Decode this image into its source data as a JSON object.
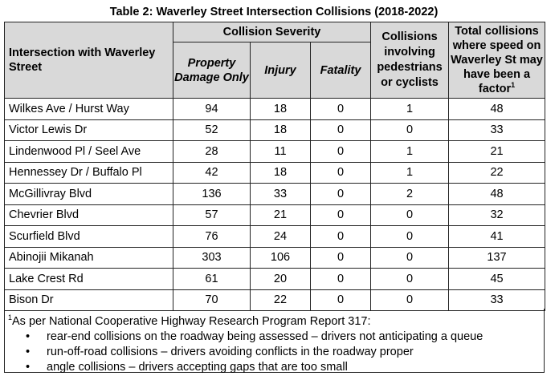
{
  "title": "Table 2: Waverley Street Intersection Collisions (2018-2022)",
  "headers": {
    "intersection": "Intersection with Waverley Street",
    "severity": "Collision Severity",
    "property_damage": "Property Damage Only",
    "injury": "Injury",
    "fatality": "Fatality",
    "pedestrians": "Collisions involving pedestrians or cyclists",
    "speed": "Total collisions where speed on Waverley St may have been a factor",
    "speed_sup": "1"
  },
  "rows": [
    {
      "name": "Wilkes Ave / Hurst Way",
      "pdo": "94",
      "injury": "18",
      "fatality": "0",
      "ped": "1",
      "speed": "48"
    },
    {
      "name": "Victor Lewis Dr",
      "pdo": "52",
      "injury": "18",
      "fatality": "0",
      "ped": "0",
      "speed": "33"
    },
    {
      "name": "Lindenwood Pl / Seel Ave",
      "pdo": "28",
      "injury": "11",
      "fatality": "0",
      "ped": "1",
      "speed": "21"
    },
    {
      "name": "Hennessey Dr / Buffalo Pl",
      "pdo": "42",
      "injury": "18",
      "fatality": "0",
      "ped": "1",
      "speed": "22"
    },
    {
      "name": "McGillivray Blvd",
      "pdo": "136",
      "injury": "33",
      "fatality": "0",
      "ped": "2",
      "speed": "48"
    },
    {
      "name": "Chevrier Blvd",
      "pdo": "57",
      "injury": "21",
      "fatality": "0",
      "ped": "0",
      "speed": "32"
    },
    {
      "name": "Scurfield Blvd",
      "pdo": "76",
      "injury": "24",
      "fatality": "0",
      "ped": "0",
      "speed": "41"
    },
    {
      "name": "Abinojii Mikanah",
      "pdo": "303",
      "injury": "106",
      "fatality": "0",
      "ped": "0",
      "speed": "137"
    },
    {
      "name": "Lake Crest Rd",
      "pdo": "61",
      "injury": "20",
      "fatality": "0",
      "ped": "0",
      "speed": "45"
    },
    {
      "name": "Bison Dr",
      "pdo": "70",
      "injury": "22",
      "fatality": "0",
      "ped": "0",
      "speed": "33"
    }
  ],
  "footnote": {
    "marker": "1",
    "intro": "As per National Cooperative Highway Research Program Report 317:",
    "bullets": [
      "rear-end collisions on the roadway being assessed – drivers not anticipating a queue",
      "run-off-road collisions – drivers avoiding conflicts in the roadway proper",
      "angle collisions – drivers accepting gaps that are too small"
    ]
  }
}
